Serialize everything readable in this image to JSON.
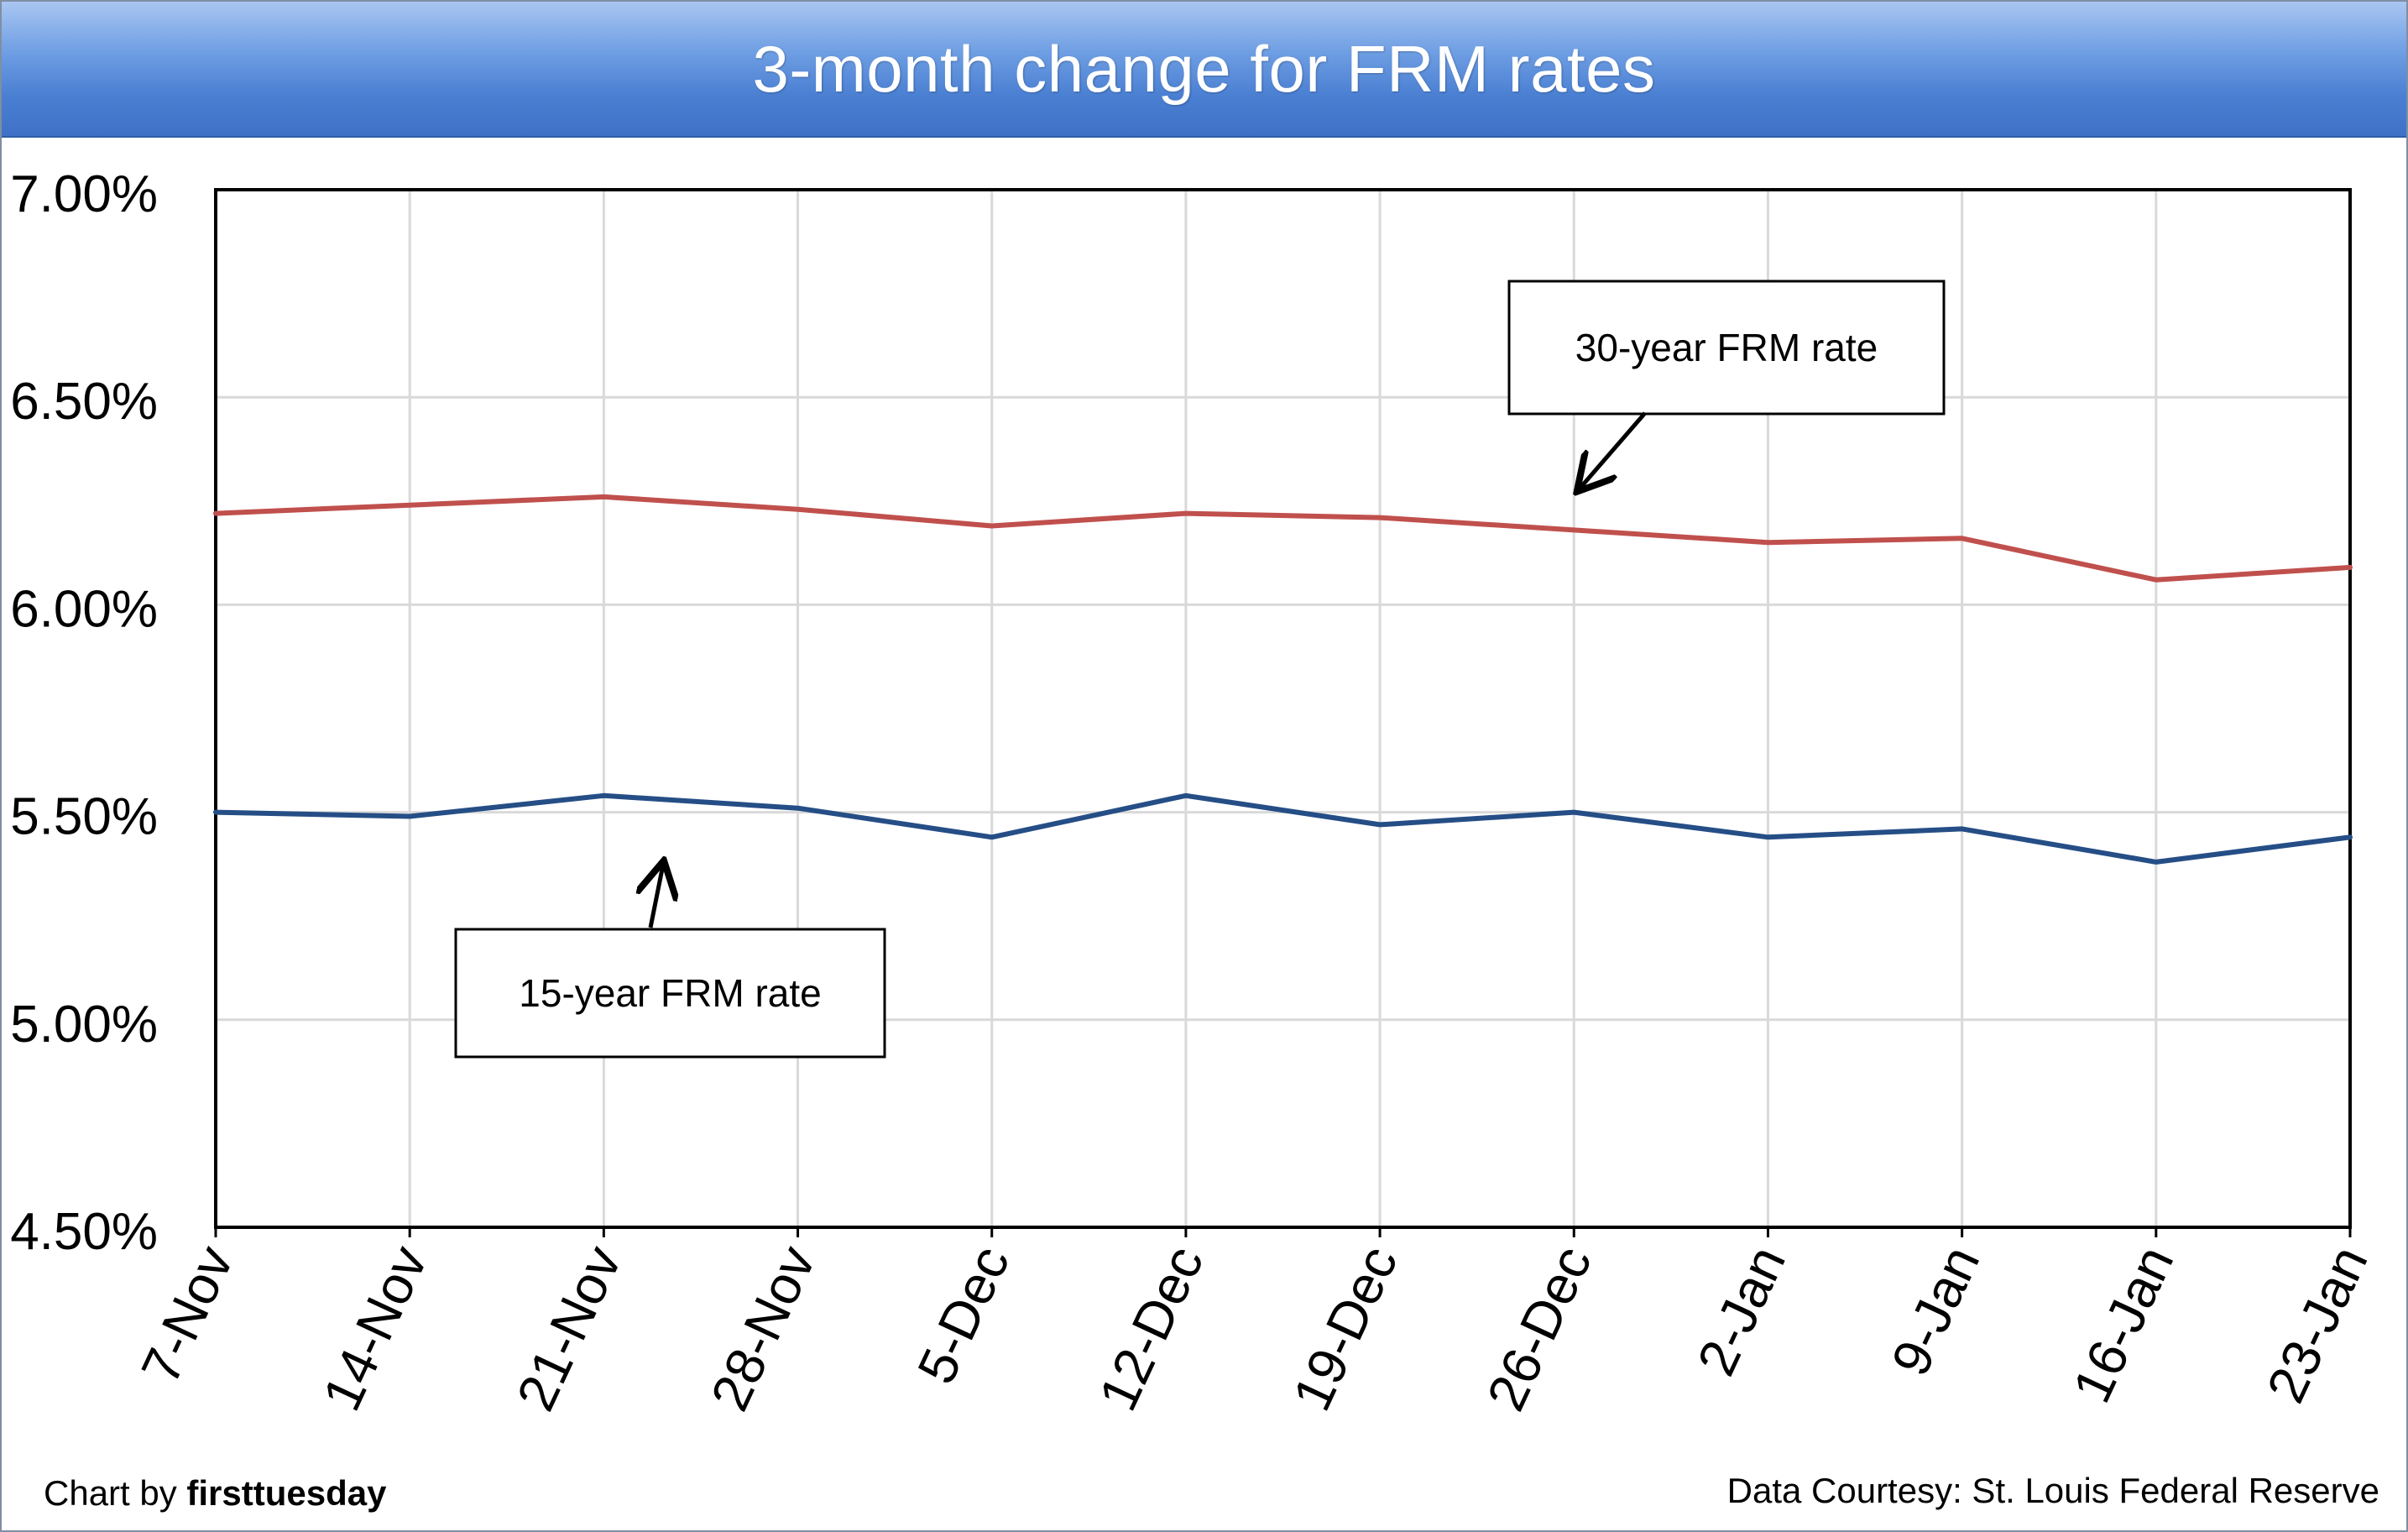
{
  "chart_data": {
    "type": "line",
    "title": "3-month change for FRM rates",
    "categories": [
      "7-Nov",
      "14-Nov",
      "21-Nov",
      "28-Nov",
      "5-Dec",
      "12-Dec",
      "19-Dec",
      "26-Dec",
      "2-Jan",
      "9-Jan",
      "16-Jan",
      "23-Jan"
    ],
    "series": [
      {
        "name": "30-year FRM rate",
        "color": "#c0504d",
        "values": [
          6.22,
          6.24,
          6.26,
          6.23,
          6.19,
          6.22,
          6.21,
          6.18,
          6.15,
          6.16,
          6.06,
          6.09
        ]
      },
      {
        "name": "15-year FRM rate",
        "color": "#254e86",
        "values": [
          5.5,
          5.49,
          5.54,
          5.51,
          5.44,
          5.54,
          5.47,
          5.5,
          5.44,
          5.46,
          5.38,
          5.44
        ]
      }
    ],
    "ylim": [
      4.5,
      7.0
    ],
    "yticks": [
      4.5,
      5.0,
      5.5,
      6.0,
      6.5,
      7.0
    ],
    "ytick_labels": [
      "4.50%",
      "5.00%",
      "5.50%",
      "6.00%",
      "6.50%",
      "7.00%"
    ],
    "grid": true,
    "xlabel": "",
    "ylabel": "",
    "annotations": [
      {
        "text": "30-year FRM rate",
        "series": 0,
        "point_index": 7
      },
      {
        "text": "15-year FRM rate",
        "series": 1,
        "point_index": 2
      }
    ]
  },
  "footer": {
    "credit_prefix": "Chart by ",
    "credit_brand": "firsttuesday",
    "source": "Data Courtesy: St. Louis Federal Reserve"
  },
  "colors": {
    "title_bar": "#4a7fd2",
    "grid": "#d9d9d9",
    "axis": "#000000"
  }
}
